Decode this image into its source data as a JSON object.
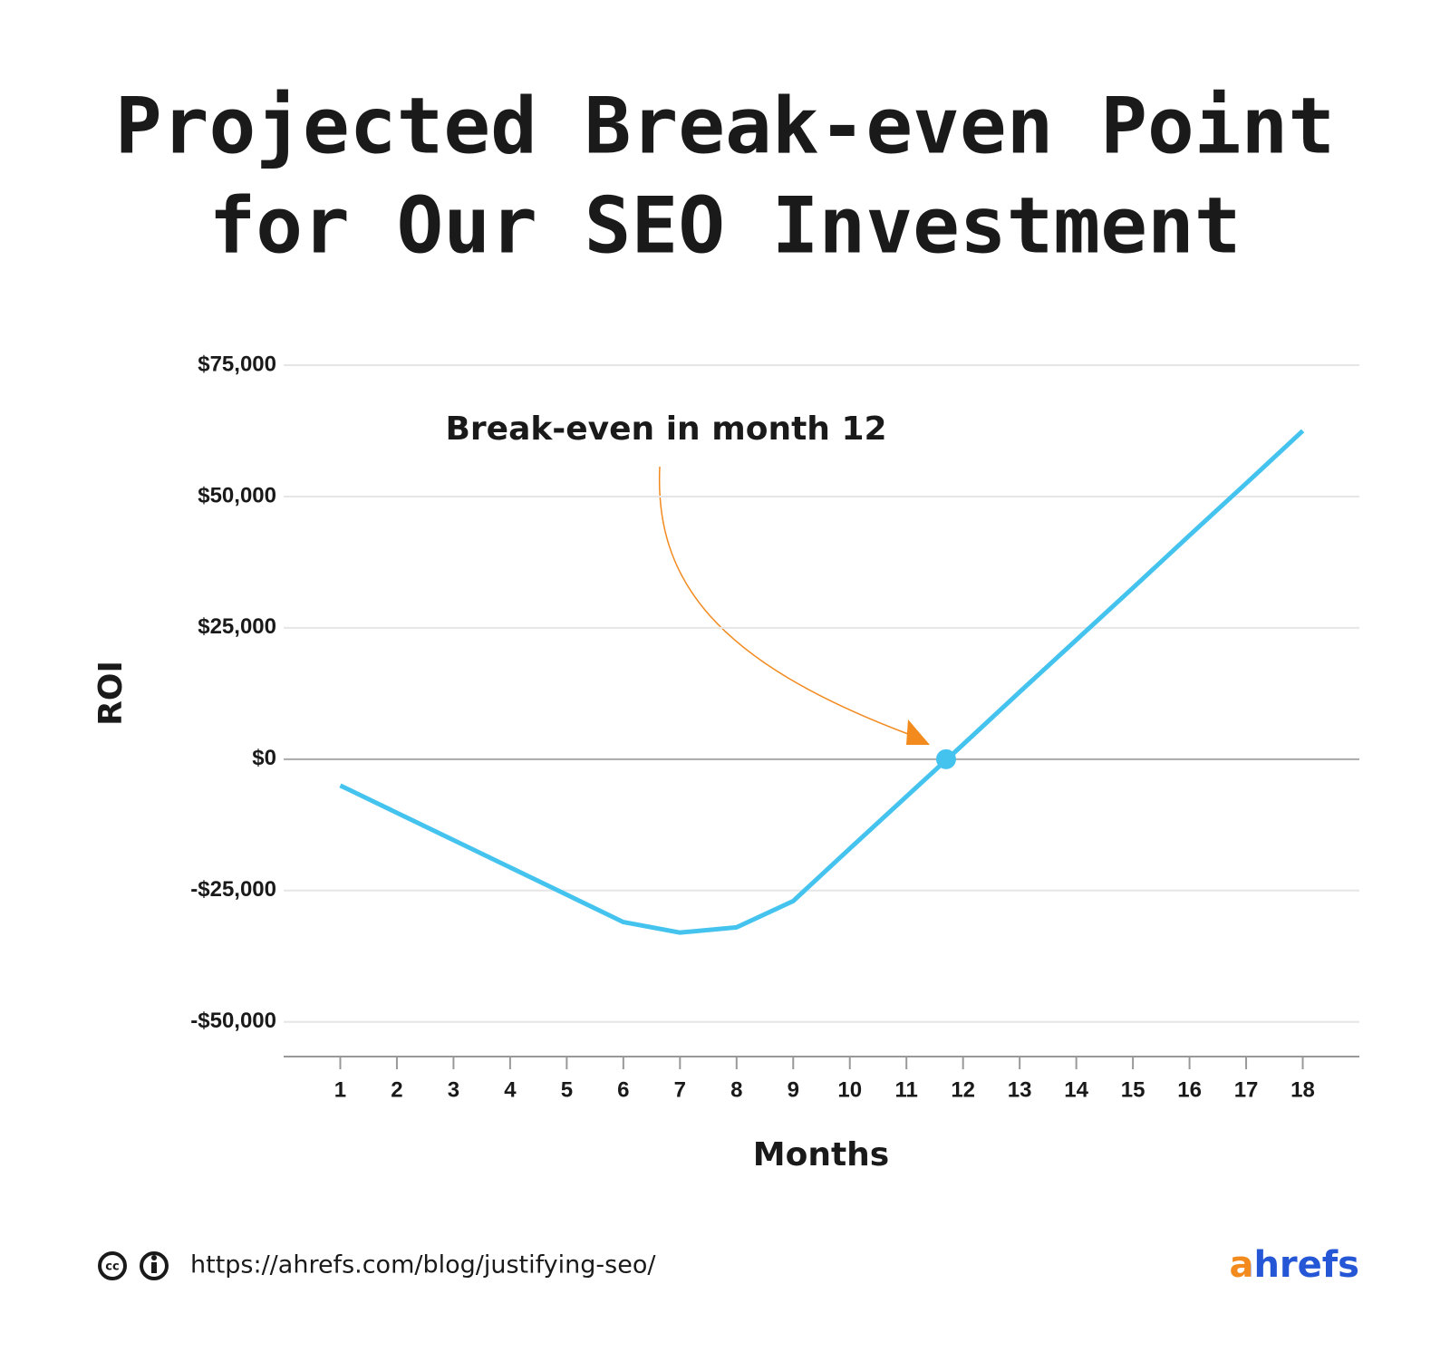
{
  "chart_data": {
    "type": "line",
    "title": [
      "Projected Break-even Point",
      "for Our SEO Investment"
    ],
    "x_label": "Months",
    "y_label": "ROI",
    "x": [
      1,
      2,
      3,
      4,
      5,
      6,
      7,
      8,
      9,
      10,
      11,
      12,
      13,
      14,
      15,
      16,
      17,
      18
    ],
    "series": [
      {
        "name": "ROI",
        "color": "#45c3ef",
        "values": [
          -5000,
          -10200,
          -15400,
          -20600,
          -25800,
          -31000,
          -33000,
          -32000,
          -27000,
          -17000,
          -7100,
          2800,
          12800,
          22700,
          32600,
          42600,
          52500,
          62500
        ]
      }
    ],
    "xlim": [
      0,
      19
    ],
    "xticks": [
      1,
      2,
      3,
      4,
      5,
      6,
      7,
      8,
      9,
      10,
      11,
      12,
      13,
      14,
      15,
      16,
      17,
      18
    ],
    "ylim": [
      -56600,
      75000
    ],
    "yticks": [
      {
        "value": -50000,
        "label": "-$50,000"
      },
      {
        "value": -25000,
        "label": "-$25,000"
      },
      {
        "value": 0,
        "label": "$0"
      },
      {
        "value": 25000,
        "label": "$25,000"
      },
      {
        "value": 50000,
        "label": "$50,000"
      },
      {
        "value": 75000,
        "label": "$75,000"
      }
    ],
    "grid": true,
    "breakeven_point": {
      "x": 11.7,
      "y": 0
    },
    "annotation": "Break-even in month 12",
    "annotation_color": "#f28a1e"
  },
  "footer": {
    "url": "https://ahrefs.com/blog/justifying-seo/",
    "logo": "ahrefs"
  }
}
